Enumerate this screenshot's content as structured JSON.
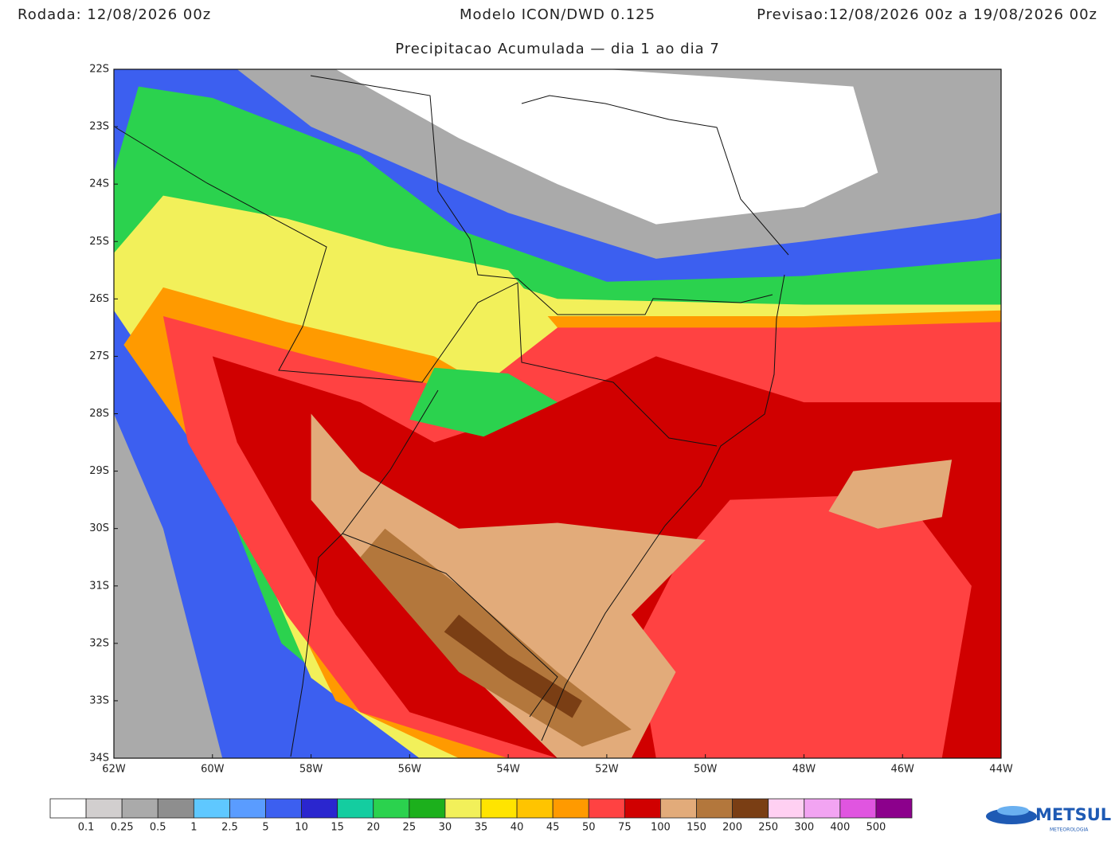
{
  "header": {
    "run": "Rodada: 12/08/2026 00z",
    "model": "Modelo ICON/DWD 0.125",
    "forecast": "Previsao:12/08/2026 00z a 19/08/2026 00z"
  },
  "subtitle": "Precipitacao Acumulada — dia 1 ao dia 7",
  "map": {
    "lat_labels": [
      "22S",
      "23S",
      "24S",
      "25S",
      "26S",
      "27S",
      "28S",
      "29S",
      "30S",
      "31S",
      "32S",
      "33S",
      "34S"
    ],
    "lon_labels": [
      "62W",
      "60W",
      "58W",
      "56W",
      "54W",
      "52W",
      "50W",
      "48W",
      "46W",
      "44W"
    ]
  },
  "legend": {
    "labels": [
      "0.1",
      "0.25",
      "0.5",
      "1",
      "2.5",
      "5",
      "10",
      "15",
      "20",
      "25",
      "30",
      "35",
      "40",
      "45",
      "50",
      "75",
      "100",
      "150",
      "200",
      "250",
      "300",
      "400",
      "500"
    ],
    "colors": [
      "#ffffff",
      "#d2cfcf",
      "#aaaaaa",
      "#8e8e8e",
      "#5fc8ff",
      "#5a9cff",
      "#3c5ff0",
      "#2a26cf",
      "#14cda0",
      "#2bd24e",
      "#1cb01c",
      "#f2f05a",
      "#ffe400",
      "#ffc400",
      "#ff9a00",
      "#ff4242",
      "#d00000",
      "#e2ab7a",
      "#b3773c",
      "#7a3e14",
      "#ffd0f2",
      "#f2a4f2",
      "#e055e0",
      "#8c008c"
    ]
  },
  "logo": {
    "name": "METSUL",
    "tagline": "METEOROLOGIA"
  }
}
